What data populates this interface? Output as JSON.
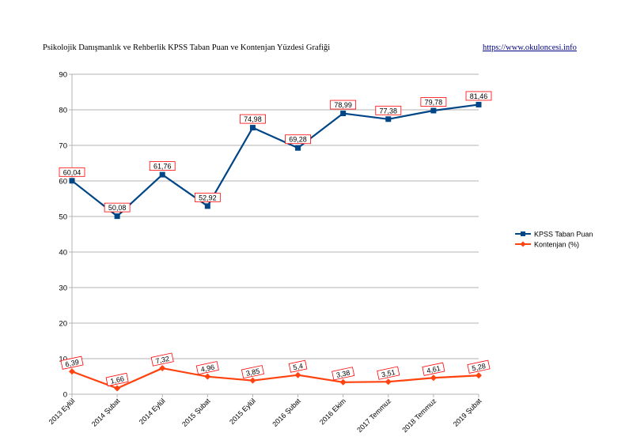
{
  "header": {
    "title": "Psikolojik Danışmanlık ve Rehberlik KPSS Taban Puan ve Kontenjan Yüzdesi Grafiği",
    "link": "https://www.okuloncesi.info"
  },
  "chart_data": {
    "type": "line",
    "title": "",
    "xlabel": "",
    "ylabel": "",
    "ylim": [
      0,
      90
    ],
    "yticks": [
      0,
      10,
      20,
      30,
      40,
      50,
      60,
      70,
      80,
      90
    ],
    "grid": true,
    "legend_position": "right",
    "categories": [
      "2013 Eylül",
      "2014 Şubat",
      "2014 Eylül",
      "2015 Şubat",
      "2015 Eylül",
      "2016 Şubat",
      "2016 Ekim",
      "2017 Temmuz",
      "2018 Temmuz",
      "2019 Şubat"
    ],
    "series": [
      {
        "name": "KPSS Taban Puan",
        "color": "#004586",
        "marker": "square",
        "values": [
          60.04,
          50.08,
          61.76,
          52.92,
          74.98,
          69.28,
          78.99,
          77.38,
          79.78,
          81.46
        ],
        "labels": [
          "60,04",
          "50,08",
          "61,76",
          "52,92",
          "74,98",
          "69,28",
          "78,99",
          "77,38",
          "79,78",
          "81,46"
        ]
      },
      {
        "name": "Kontenjan (%)",
        "color": "#ff420e",
        "marker": "diamond",
        "values": [
          6.39,
          1.66,
          7.32,
          4.96,
          3.85,
          5.4,
          3.38,
          3.51,
          4.61,
          5.28
        ],
        "labels": [
          "6,39",
          "1,66",
          "7,32",
          "4,96",
          "3,85",
          "5,4",
          "3,38",
          "3,51",
          "4,61",
          "5,28"
        ]
      }
    ]
  }
}
